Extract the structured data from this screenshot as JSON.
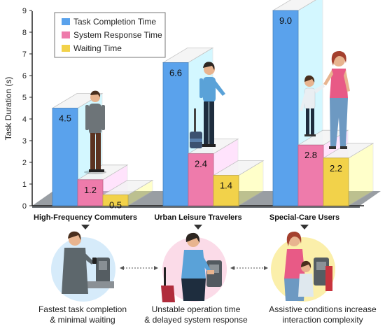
{
  "chart_data": {
    "type": "bar",
    "title": "",
    "xlabel": "",
    "ylabel": "Task Duration (s)",
    "ylim": [
      0,
      9
    ],
    "yticks": [
      0,
      1,
      2,
      3,
      4,
      5,
      6,
      7,
      8,
      9
    ],
    "grid": false,
    "legend_position": "top-left",
    "categories": [
      "High-Frequency Commuters",
      "Urban Leisure Travelers",
      "Special-Care Users"
    ],
    "series": [
      {
        "name": "Task Completion Time",
        "color": "#5aa2ec",
        "values": [
          4.5,
          6.6,
          9.0
        ],
        "labels": [
          "4.5",
          "6.6",
          "9.0"
        ]
      },
      {
        "name": "System Response Time",
        "color": "#ee7bab",
        "values": [
          1.2,
          2.4,
          2.8
        ],
        "labels": [
          "1.2",
          "2.4",
          "2.8"
        ]
      },
      {
        "name": "Waiting Time",
        "color": "#f2d24a",
        "values": [
          0.5,
          1.4,
          2.2
        ],
        "labels": [
          "0.5",
          "1.4",
          "2.2"
        ]
      }
    ]
  },
  "captions": [
    {
      "line1": "Fastest task completion",
      "line2": "& minimal waiting"
    },
    {
      "line1": "Unstable operation time",
      "line2": "& delayed system response"
    },
    {
      "line1": "Assistive conditions increase",
      "line2": "interaction complexity"
    }
  ],
  "colors": {
    "floor": "#8e9499",
    "axis": "#222222",
    "scene_circles": [
      "#d6ebfa",
      "#fbdbe8",
      "#fbefaa"
    ]
  },
  "icons": [
    "commuter-person-icon",
    "traveler-with-suitcase-icon",
    "family-with-child-icon",
    "ticket-kiosk-icon",
    "down-triangle-icon"
  ]
}
